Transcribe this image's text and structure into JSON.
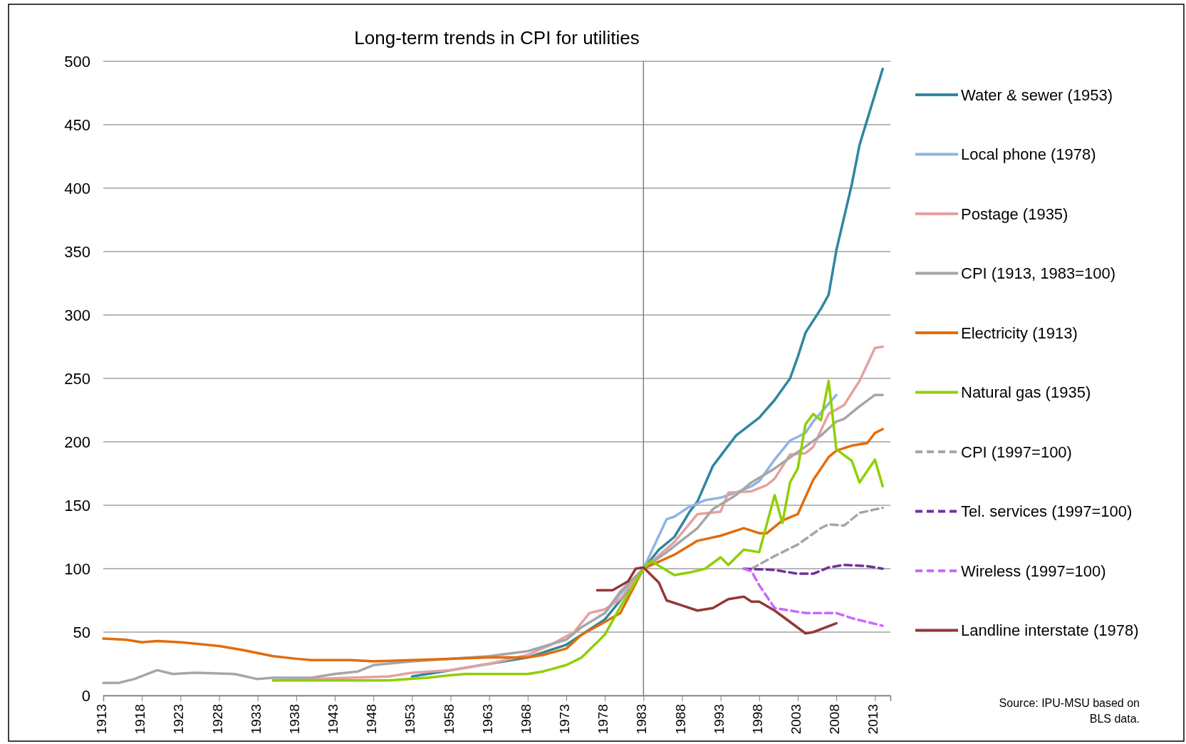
{
  "chart_data": {
    "type": "line",
    "title": "Long-term trends in CPI for utilities",
    "xlim": [
      1913,
      2015
    ],
    "xticks": [
      1913,
      1918,
      1923,
      1928,
      1933,
      1938,
      1943,
      1948,
      1953,
      1958,
      1963,
      1968,
      1973,
      1978,
      1983,
      1988,
      1993,
      1998,
      2003,
      2008,
      2013
    ],
    "ylim": [
      0,
      500
    ],
    "yticks": [
      0,
      50,
      100,
      150,
      200,
      250,
      300,
      350,
      400,
      450,
      500
    ],
    "grid": "y",
    "legend": "right",
    "line_style": "solid",
    "marker": "none",
    "ref_lines": [
      {
        "axis": "x",
        "value": 1983,
        "label": null,
        "color": "#808080"
      }
    ],
    "annotations": [
      "Source: IPU-MSU  based on BLS data."
    ],
    "series": [
      {
        "name": "Water & sewer (1953)",
        "color": "#2e86a0",
        "x": [
          1953,
          1958,
          1968,
          1973,
          1978,
          1980,
          1983,
          1985,
          1987,
          1989,
          1990,
          1992,
          1995,
          1998,
          2000,
          2002,
          2003,
          2004,
          2006,
          2007,
          2008,
          2010,
          2011,
          2014
        ],
        "values": [
          15,
          20,
          30,
          40,
          60,
          75,
          100,
          115,
          125,
          145,
          153,
          181,
          205,
          219,
          233,
          250,
          267,
          286,
          305,
          316,
          351,
          403,
          434,
          494
        ]
      },
      {
        "name": "Local phone (1978)",
        "color": "#8fb4e3",
        "x": [
          1978,
          1980,
          1983,
          1986,
          1987,
          1989,
          1991,
          1993,
          1995,
          1997,
          1998,
          2000,
          2002,
          2004,
          2005,
          2008
        ],
        "values": [
          65,
          80,
          100,
          139,
          141,
          149,
          154,
          156,
          160,
          165,
          169,
          186,
          201,
          207,
          216,
          237
        ]
      },
      {
        "name": "Postage (1935)",
        "color": "#e6a0a0",
        "x": [
          1935,
          1945,
          1950,
          1953,
          1958,
          1963,
          1968,
          1971,
          1974,
          1976,
          1978,
          1980,
          1983,
          1987,
          1990,
          1993,
          1994,
          1997,
          1999,
          2000,
          2002,
          2004,
          2005,
          2007,
          2009,
          2011,
          2013,
          2014
        ],
        "values": [
          12,
          14,
          15,
          18,
          20,
          25,
          32,
          40,
          50,
          65,
          68,
          76,
          100,
          121,
          143,
          145,
          160,
          161,
          166,
          171,
          190,
          191,
          196,
          222,
          229,
          248,
          274,
          275
        ]
      },
      {
        "name": "CPI (1913, 1983=100)",
        "color": "#a6a6a6",
        "x": [
          1913,
          1915,
          1917,
          1920,
          1922,
          1925,
          1930,
          1933,
          1935,
          1940,
          1943,
          1946,
          1948,
          1953,
          1963,
          1968,
          1973,
          1975,
          1978,
          1980,
          1983,
          1986,
          1990,
          1992,
          1995,
          1997,
          2000,
          2003,
          2006,
          2008,
          2009,
          2011,
          2013,
          2014
        ],
        "values": [
          10,
          10,
          13,
          20,
          17,
          18,
          17,
          13,
          14,
          14,
          17,
          19,
          24,
          27,
          31,
          35,
          44,
          54,
          65,
          82,
          100,
          113,
          132,
          147,
          158,
          168,
          179,
          192,
          205,
          216,
          218,
          228,
          237,
          237
        ]
      },
      {
        "name": "Electricity (1913)",
        "color": "#e36c0a",
        "x": [
          1913,
          1916,
          1918,
          1920,
          1923,
          1928,
          1931,
          1935,
          1938,
          1940,
          1945,
          1948,
          1953,
          1958,
          1963,
          1968,
          1970,
          1973,
          1975,
          1978,
          1980,
          1983,
          1987,
          1990,
          1993,
          1996,
          1998,
          1999,
          2001,
          2003,
          2005,
          2007,
          2008,
          2010,
          2012,
          2013,
          2014
        ],
        "values": [
          45,
          44,
          42,
          43,
          42,
          39,
          36,
          31,
          29,
          28,
          28,
          27,
          28,
          29,
          30,
          30,
          32,
          37,
          48,
          58,
          65,
          100,
          111,
          122,
          126,
          132,
          128,
          128,
          138,
          143,
          170,
          188,
          193,
          197,
          199,
          207,
          210
        ]
      },
      {
        "name": "Natural gas (1935)",
        "color": "#8fd000",
        "x": [
          1935,
          1950,
          1955,
          1958,
          1960,
          1968,
          1970,
          1973,
          1975,
          1977,
          1978,
          1980,
          1983,
          1984,
          1987,
          1989,
          1991,
          1993,
          1994,
          1996,
          1998,
          2000,
          2001,
          2002,
          2003,
          2004,
          2005,
          2006,
          2007,
          2008,
          2010,
          2011,
          2013,
          2014
        ],
        "values": [
          12,
          12,
          14,
          16,
          17,
          17,
          19,
          24,
          30,
          42,
          48,
          70,
          100,
          106,
          95,
          97,
          100,
          109,
          103,
          115,
          113,
          158,
          136,
          168,
          179,
          214,
          222,
          217,
          248,
          194,
          185,
          168,
          186,
          165
        ]
      },
      {
        "name": "CPI (1997=100)",
        "color": "#a6a6a6",
        "line_style": "dashed",
        "x": [
          1997,
          2000,
          2003,
          2006,
          2007,
          2009,
          2011,
          2014
        ],
        "values": [
          100,
          110,
          119,
          132,
          135,
          134,
          144,
          148
        ]
      },
      {
        "name": "Tel. services (1997=100)",
        "color": "#7030a0",
        "line_style": "dashed",
        "x": [
          1996,
          2000,
          2003,
          2005,
          2007,
          2009,
          2012,
          2014
        ],
        "values": [
          100,
          99,
          96,
          96,
          101,
          103,
          102,
          100
        ]
      },
      {
        "name": "Wireless (1997=100)",
        "color": "#cc66ff",
        "line_style": "dashed",
        "x": [
          1996,
          1997,
          1998,
          2000,
          2004,
          2008,
          2010,
          2014
        ],
        "values": [
          100,
          98,
          87,
          69,
          65,
          65,
          61,
          55
        ]
      },
      {
        "name": "Landline interstate (1978)",
        "color": "#953735",
        "x": [
          1977,
          1979,
          1981,
          1982,
          1983,
          1985,
          1986,
          1988,
          1990,
          1992,
          1994,
          1996,
          1997,
          1998,
          2000,
          2004,
          2005,
          2008
        ],
        "values": [
          83,
          83,
          90,
          100,
          101,
          89,
          75,
          71,
          67,
          69,
          76,
          78,
          74,
          74,
          67,
          49,
          50,
          57
        ]
      }
    ]
  }
}
